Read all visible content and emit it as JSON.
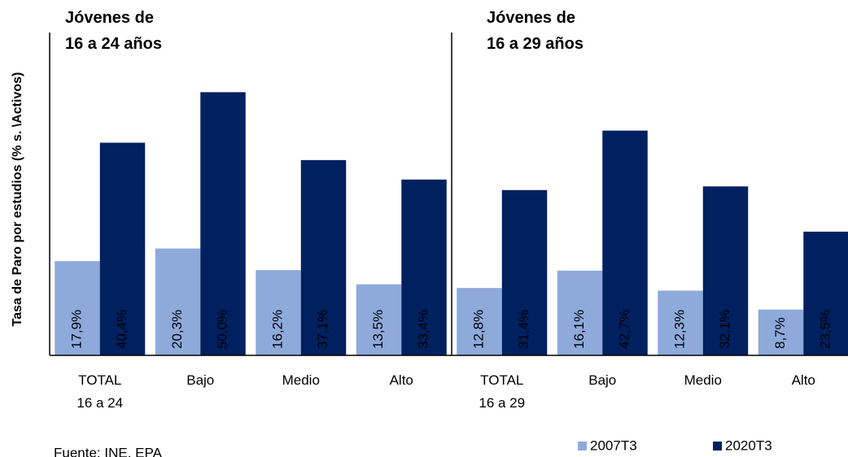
{
  "chart_data": {
    "type": "bar",
    "panel_titles": [
      "Jóvenes de\n16 a 24 años",
      "Jóvenes de\n16 a 29 años"
    ],
    "y_label": "Tasa de Paro por estudios (% s. \\Activos)",
    "categories": [
      "TOTAL\n16 a 24",
      "Bajo",
      "Medio",
      "Alto",
      "TOTAL\n16 a 29",
      "Bajo",
      "Medio",
      "Alto"
    ],
    "series": [
      {
        "name": "2007T3",
        "color": "#8eaadb",
        "values": [
          17.9,
          20.3,
          16.2,
          13.5,
          12.8,
          16.1,
          12.3,
          8.7
        ],
        "value_labels": [
          "17,9%",
          "20,3%",
          "16,2%",
          "13,5%",
          "12,8%",
          "16,1%",
          "12,3%",
          "8,7%"
        ]
      },
      {
        "name": "2020T3",
        "color": "#002060",
        "values": [
          40.4,
          50.0,
          37.1,
          33.4,
          31.4,
          42.7,
          32.1,
          23.5
        ],
        "value_labels": [
          "40,4%",
          "50,0%",
          "37,1%",
          "33,4%",
          "31,4%",
          "42,7%",
          "32,1%",
          "23,5%"
        ]
      }
    ],
    "ylim": [
      0,
      55
    ],
    "source": "Fuente: INE, EPA"
  }
}
